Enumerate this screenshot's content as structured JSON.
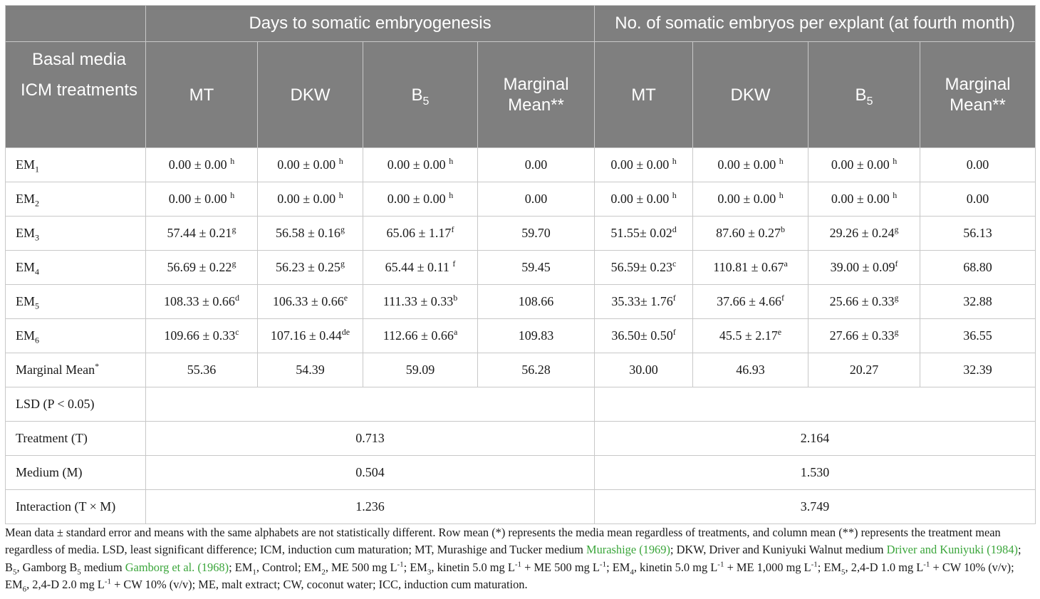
{
  "header": {
    "group1": "Days to somatic embryogenesis",
    "group2": "No. of somatic embryos per explant (at fourth month)",
    "corner_line1": "Basal media",
    "corner_line2": "ICM treatments",
    "col_mt": "MT",
    "col_dkw": "DKW",
    "col_b": "B",
    "col_b_sub": "5",
    "col_mm1": "Marginal",
    "col_mm2": "Mean**"
  },
  "rows": [
    {
      "lab": "EM",
      "sub": "1",
      "c": [
        [
          "0.00 ± 0.00 ",
          "h"
        ],
        [
          "0.00 ± 0.00 ",
          "h"
        ],
        [
          "0.00 ± 0.00 ",
          "h"
        ],
        [
          "0.00",
          ""
        ],
        [
          "0.00 ± 0.00 ",
          "h"
        ],
        [
          "0.00 ± 0.00 ",
          "h"
        ],
        [
          "0.00 ± 0.00 ",
          "h"
        ],
        [
          "0.00",
          ""
        ]
      ]
    },
    {
      "lab": "EM",
      "sub": "2",
      "c": [
        [
          "0.00 ± 0.00 ",
          "h"
        ],
        [
          "0.00 ± 0.00 ",
          "h"
        ],
        [
          "0.00 ± 0.00 ",
          "h"
        ],
        [
          "0.00",
          ""
        ],
        [
          "0.00 ± 0.00 ",
          "h"
        ],
        [
          "0.00 ± 0.00 ",
          "h"
        ],
        [
          "0.00 ± 0.00 ",
          "h"
        ],
        [
          "0.00",
          ""
        ]
      ]
    },
    {
      "lab": "EM",
      "sub": "3",
      "c": [
        [
          "57.44 ± 0.21",
          "g"
        ],
        [
          "56.58 ± 0.16",
          "g"
        ],
        [
          "65.06 ± 1.17",
          "f"
        ],
        [
          "59.70",
          ""
        ],
        [
          "51.55± 0.02",
          "d"
        ],
        [
          "87.60 ± 0.27",
          "b"
        ],
        [
          "29.26 ± 0.24",
          "g"
        ],
        [
          "56.13",
          ""
        ]
      ]
    },
    {
      "lab": "EM",
      "sub": "4",
      "c": [
        [
          "56.69 ± 0.22",
          "g"
        ],
        [
          "56.23 ± 0.25",
          "g"
        ],
        [
          "65.44 ± 0.11 ",
          "f"
        ],
        [
          "59.45",
          ""
        ],
        [
          "56.59± 0.23",
          "c"
        ],
        [
          "110.81 ± 0.67",
          "a"
        ],
        [
          "39.00 ± 0.09",
          "f"
        ],
        [
          "68.80",
          ""
        ]
      ]
    },
    {
      "lab": "EM",
      "sub": "5",
      "c": [
        [
          "108.33 ± 0.66",
          "d"
        ],
        [
          "106.33 ± 0.66",
          "e"
        ],
        [
          "111.33 ± 0.33",
          "b"
        ],
        [
          "108.66",
          ""
        ],
        [
          "35.33± 1.76",
          "f"
        ],
        [
          "37.66 ± 4.66",
          "f"
        ],
        [
          "25.66 ± 0.33",
          "g"
        ],
        [
          "32.88",
          ""
        ]
      ]
    },
    {
      "lab": "EM",
      "sub": "6",
      "c": [
        [
          "109.66 ± 0.33",
          "c"
        ],
        [
          "107.16 ± 0.44",
          "de"
        ],
        [
          "112.66 ± 0.66",
          "a"
        ],
        [
          "109.83",
          ""
        ],
        [
          "36.50± 0.50",
          "f"
        ],
        [
          "45.5 ± 2.17",
          "e"
        ],
        [
          "27.66 ± 0.33",
          "g"
        ],
        [
          "36.55",
          ""
        ]
      ]
    }
  ],
  "marginal": {
    "label": "Marginal Mean",
    "mark": "*",
    "values": [
      "55.36",
      "54.39",
      "59.09",
      "56.28",
      "30.00",
      "46.93",
      "20.27",
      "32.39"
    ]
  },
  "lsd": {
    "title": "LSD (P < 0.05)",
    "rows": [
      {
        "label": "Treatment (T)",
        "v1": "0.713",
        "v2": "2.164"
      },
      {
        "label": "Medium (M)",
        "v1": "0.504",
        "v2": "1.530"
      },
      {
        "label": "Interaction (T × M)",
        "v1": "1.236",
        "v2": "3.749"
      }
    ]
  },
  "footnote": {
    "t1": "Mean data ± standard error and means with the same alphabets are not statistically different. Row mean (*) represents the media mean regardless of treatments, and column mean (**) represents the treatment mean regardless of media. LSD, least significant difference; ICM, induction cum maturation; MT, Murashige and Tucker medium ",
    "ref1": "Murashige (1969)",
    "t2": "; DKW, Driver and Kuniyuki Walnut medium ",
    "ref2": "Driver and Kuniyuki (1984)",
    "t3": "; B",
    "t3sub": "5",
    "t4": ", Gamborg B",
    "t4sub": "5",
    "t5": " medium ",
    "ref3": "Gamborg et al. (1968)",
    "t6": "; EM",
    "t6sub": "1",
    "t7": ", Control; EM",
    "t7sub": "2",
    "t8": ", ME 500 mg L",
    "t8sup": "-1",
    "t9": "; EM",
    "t9sub": "3",
    "t10": ", kinetin 5.0 mg L",
    "t10sup": "-1",
    "t11": " + ME 500 mg L",
    "t11sup": "-1",
    "t12": "; EM",
    "t12sub": "4",
    "t13": ", kinetin 5.0 mg L",
    "t13sup": "-1",
    "t14": " + ME 1,000 mg L",
    "t14sup": "-1",
    "t15": "; EM",
    "t15sub": "5",
    "t16": ", 2,4-D 1.0 mg L",
    "t16sup": "-1",
    "t17": " + CW 10% (v/v); EM",
    "t17sub": "6",
    "t18": ", 2,4-D 2.0 mg L",
    "t18sup": "-1",
    "t19": " + CW 10% (v/v); ME, malt extract; CW, coconut water; ICC, induction cum maturation."
  }
}
